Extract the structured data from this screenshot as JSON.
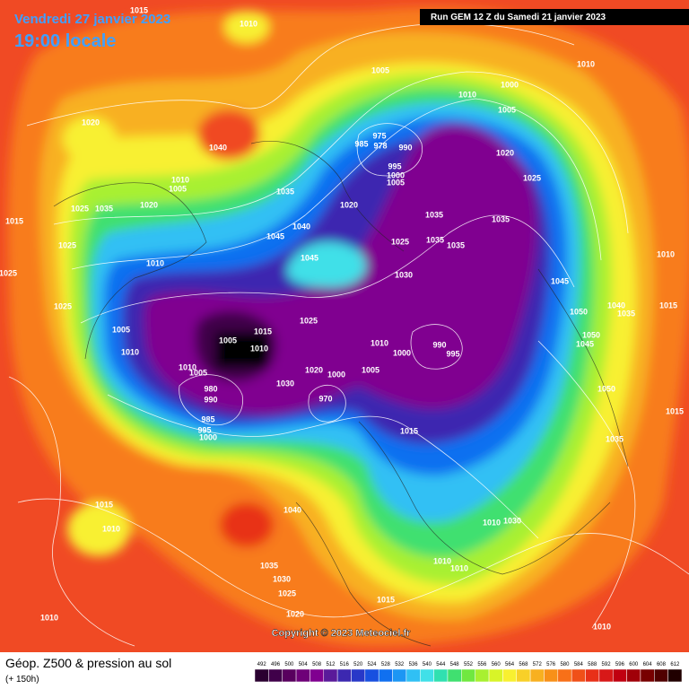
{
  "header": {
    "date": "Vendredi 27 janvier 2023",
    "time": "19:00 locale",
    "run": "Run GEM 12 Z du Samedi 21 janvier 2023"
  },
  "map": {
    "pressure_labels": [
      1015,
      1010,
      1020,
      1040,
      1010,
      1005,
      1020,
      1035,
      1025,
      1015,
      1025,
      1010,
      1025,
      1025,
      1005,
      1010,
      1005,
      1010,
      1015,
      1010,
      1005,
      1030,
      980,
      990,
      985,
      995,
      1000,
      1025,
      1020,
      1000,
      970,
      1005,
      1010,
      1000,
      990,
      995,
      1015,
      1035,
      1045,
      1040,
      1045,
      1020,
      1005,
      1010,
      1000,
      1005,
      975,
      985,
      978,
      990,
      995,
      1000,
      1005,
      1020,
      1025,
      1035,
      1035,
      1035,
      1035,
      1025,
      1030,
      1010,
      1010,
      1045,
      1050,
      1040,
      1035,
      1015,
      1050,
      1045,
      1050,
      1015,
      1035,
      1010,
      1030,
      1010,
      1010,
      1015,
      1015,
      1010,
      1040,
      1035,
      1030,
      1025,
      1020,
      1010,
      1010
    ]
  },
  "copyright": "Copyright © 2023 Meteociel.fr",
  "footer": {
    "title": "Géop. Z500 & pression au sol",
    "subtitle": "(+ 150h)"
  },
  "legend": {
    "levels": [
      492,
      496,
      500,
      504,
      508,
      512,
      516,
      520,
      524,
      528,
      532,
      536,
      540,
      544,
      548,
      552,
      556,
      560,
      564,
      568,
      572,
      576,
      580,
      584,
      588,
      592,
      596,
      600,
      604,
      608,
      612
    ],
    "colors": [
      "#2a0030",
      "#40004a",
      "#58005e",
      "#6e0078",
      "#800090",
      "#5a1a9a",
      "#3c28b0",
      "#2838c8",
      "#1850e0",
      "#1070f0",
      "#1c96f4",
      "#30c0f4",
      "#40e0e8",
      "#30e0b0",
      "#40e070",
      "#70e840",
      "#a8f030",
      "#d8f428",
      "#f8f030",
      "#f8d028",
      "#f8b020",
      "#f89018",
      "#f87018",
      "#f05018",
      "#e83018",
      "#d81818",
      "#c00010",
      "#a00008",
      "#780000",
      "#500000",
      "#200000"
    ]
  }
}
